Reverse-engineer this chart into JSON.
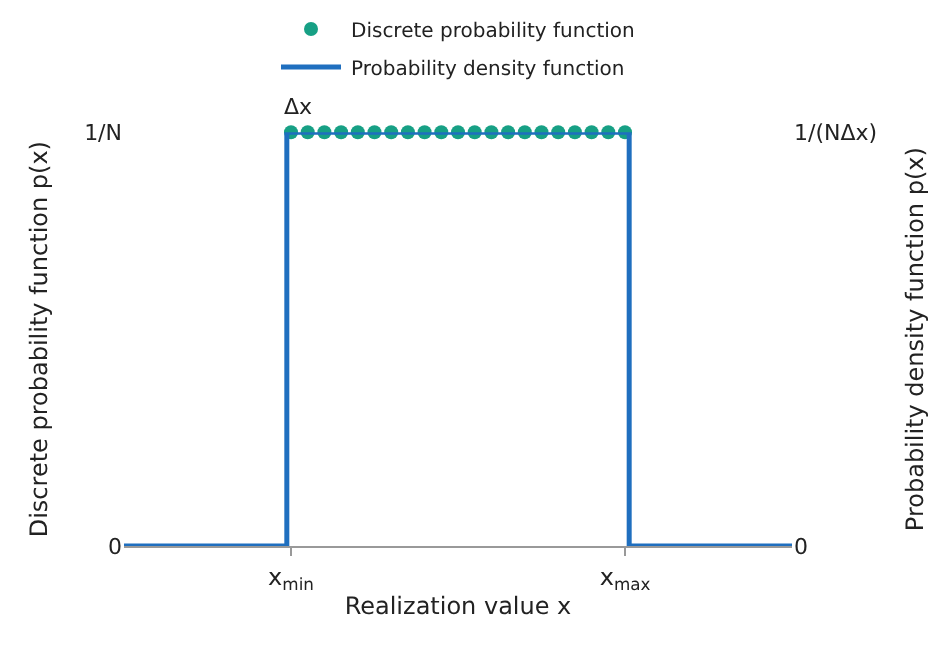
{
  "chart_data": {
    "type": "step",
    "xlabel": "Realization value x",
    "ylabel": "Discrete probability function p(x)",
    "y2label": "Probability density function p(x)",
    "categories": [
      null,
      null,
      null,
      null,
      null,
      null,
      null,
      null,
      null,
      null,
      null,
      null,
      null,
      null,
      null,
      null,
      null,
      null,
      null,
      null,
      "x$_{min}$",
      null,
      null,
      null,
      null,
      null,
      null,
      null,
      null,
      null,
      null,
      null,
      null,
      null,
      null,
      null,
      null,
      null,
      null,
      null,
      null,
      null,
      null,
      null,
      null,
      null,
      null,
      null,
      null,
      null,
      null,
      null,
      null,
      null,
      null,
      null,
      null,
      null,
      null,
      null,
      "x$_{max}$",
      null,
      null,
      null,
      null,
      null,
      null,
      null,
      null,
      null,
      null,
      null,
      null,
      null,
      null,
      null,
      null,
      null,
      null,
      null,
      null
    ],
    "ylim": [
      0,
      1
    ],
    "yticks": [
      0,
      {
        "value": 1,
        "label": "1/N"
      }
    ],
    "y2lim": [
      0,
      1
    ],
    "y2ticks": [
      0,
      {
        "value": 1,
        "label": "1/(NΔx)"
      }
    ],
    "series": [
      {
        "name": "Discrete probability function",
        "type": "scatter",
        "marker": "circle",
        "color": "#17a085",
        "values": [
          null,
          null,
          null,
          null,
          null,
          null,
          null,
          null,
          null,
          null,
          null,
          null,
          null,
          null,
          null,
          null,
          null,
          null,
          null,
          null,
          1,
          null,
          1,
          null,
          1,
          null,
          1,
          null,
          1,
          null,
          1,
          null,
          1,
          null,
          1,
          null,
          1,
          null,
          1,
          null,
          1,
          null,
          1,
          null,
          1,
          null,
          1,
          null,
          1,
          null,
          1,
          null,
          1,
          null,
          1,
          null,
          1,
          null,
          1,
          null,
          1,
          null,
          null,
          null,
          null,
          null,
          null,
          null,
          null,
          null,
          null,
          null,
          null,
          null,
          null,
          null,
          null,
          null,
          null,
          null,
          null
        ]
      },
      {
        "name": "Probability density function",
        "axis": "y2",
        "color": "#1f6fbf",
        "values": [
          0,
          0,
          0,
          0,
          0,
          0,
          0,
          0,
          0,
          0,
          0,
          0,
          0,
          0,
          0,
          0,
          0,
          0,
          0,
          0,
          1,
          1,
          1,
          1,
          1,
          1,
          1,
          1,
          1,
          1,
          1,
          1,
          1,
          1,
          1,
          1,
          1,
          1,
          1,
          1,
          1,
          1,
          1,
          1,
          1,
          1,
          1,
          1,
          1,
          1,
          1,
          1,
          1,
          1,
          1,
          1,
          1,
          1,
          1,
          1,
          1,
          0,
          0,
          0,
          0,
          0,
          0,
          0,
          0,
          0,
          0,
          0,
          0,
          0,
          0,
          0,
          0,
          0,
          0,
          0,
          0
        ]
      }
    ],
    "annotations": [
      "Δx"
    ],
    "line_style": "solid",
    "legend": "top"
  }
}
